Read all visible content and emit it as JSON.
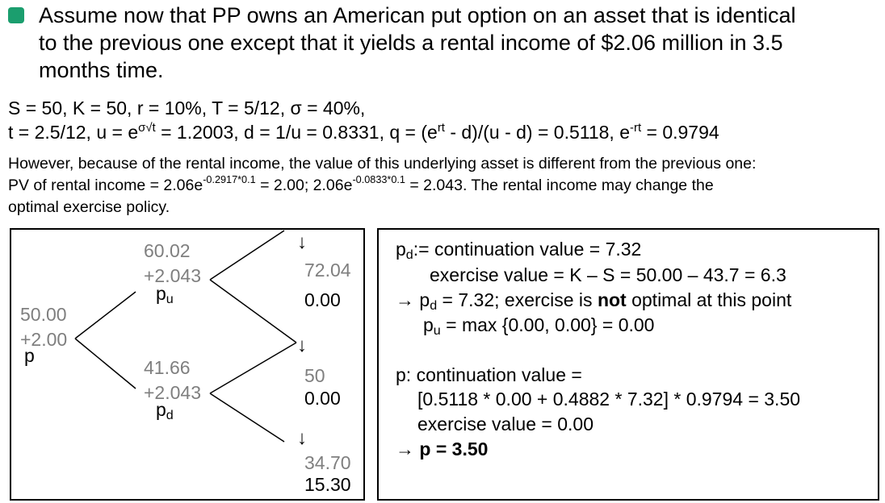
{
  "intro": {
    "line1": "Assume now that PP owns an American put option on an asset that is identical",
    "line2": "to the previous one except that it yields a rental income of $2.06 million in 3.5",
    "line3": "months time."
  },
  "params": {
    "line1": "S = 50, K = 50, r = 10%, T = 5/12, σ = 40%,",
    "l2_a": "t  = 2.5/12, u = e",
    "l2_sup1": "σ√t",
    "l2_b": " = 1.2003, d = 1/u = 0.8331, q = (e",
    "l2_sup2": "rt",
    "l2_c": " - d)/(u - d)  = 0.5118, e",
    "l2_sup3": "-rt",
    "l2_d": " = 0.9794"
  },
  "para": {
    "line1": "However, because of the rental income, the value of this underlying asset is different from the previous one:",
    "l2_a": "PV of rental income = 2.06e",
    "l2_sup1": "-0.2917*0.1",
    "l2_b": "  = 2.00; 2.06e",
    "l2_sup2": "-0.0833*0.1",
    "l2_c": " = 2.043. The rental income may change the",
    "line3": "optimal exercise policy."
  },
  "tree": {
    "root": {
      "value": "50.00",
      "income": "+2.00",
      "label": "p"
    },
    "up": {
      "value": "60.02",
      "income": "+2.043",
      "label": "p",
      "label_sub": "u"
    },
    "down": {
      "value": "41.66",
      "income": "+2.043",
      "label": "p",
      "label_sub": "d"
    },
    "uu": {
      "value": "72.04",
      "payoff": "0.00"
    },
    "ud": {
      "value": "50",
      "payoff": "0.00"
    },
    "dd": {
      "value": "34.70",
      "payoff": "15.30"
    },
    "arrow": "↓"
  },
  "calc": {
    "r1_a": "p",
    "r1_sub": "d",
    "r1_b": ":= continuation value = 7.32",
    "r2": "exercise value = K – S = 50.00 – 43.7 = 6.3",
    "r3_arrow": "→",
    "r3_a": "p",
    "r3_sub": "d",
    "r3_b": " = 7.32; exercise is ",
    "r3_bold": "not",
    "r3_c": " optimal at this point",
    "r4_a": "p",
    "r4_sub": "u",
    "r4_b": " = max {0.00, 0.00} = 0.00",
    "r5": "p: continuation value =",
    "r6": "[0.5118 * 0.00 + 0.4882 * 7.32] * 0.9794 = 3.50",
    "r7": "exercise value = 0.00",
    "r8_arrow": "→",
    "r8_bold": "p = 3.50"
  },
  "colors": {
    "bullet": "#1b9e6e",
    "stock_values": "#7f7f7f"
  }
}
